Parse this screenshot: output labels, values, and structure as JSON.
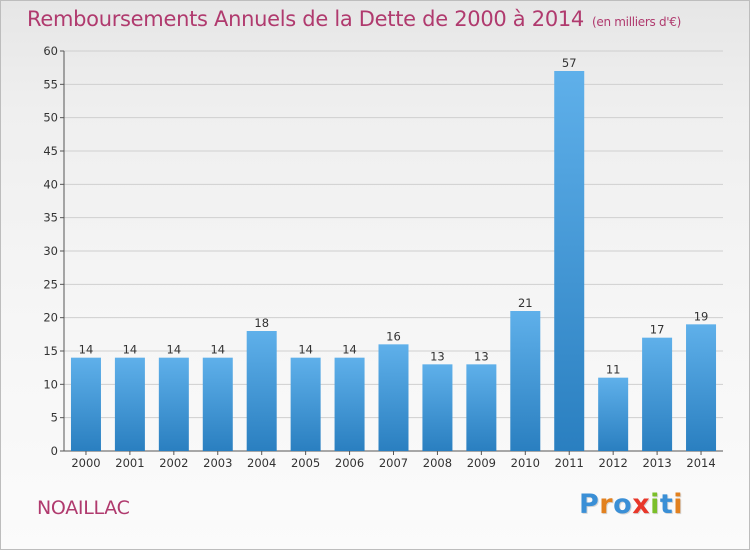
{
  "header": {
    "title": "Remboursements Annuels de la Dette de 2000 à 2014",
    "unit": "(en milliers d'€)"
  },
  "footer": {
    "commune": "NOAILLAC",
    "logo": "Proxiti"
  },
  "colors": {
    "title": "#b03a6e",
    "bar_top": "#5fb0ea",
    "bar_bottom": "#2a7fc0",
    "grid": "#cfcfcf",
    "logo": [
      "#3a8fd6",
      "#e2811f",
      "#3a8fd6",
      "#e8372a",
      "#7bbf2a",
      "#3a8fd6",
      "#e2811f"
    ]
  },
  "chart_data": {
    "type": "bar",
    "title": "Remboursements Annuels de la Dette de 2000 à 2014",
    "xlabel": "",
    "ylabel": "",
    "categories": [
      "2000",
      "2001",
      "2002",
      "2003",
      "2004",
      "2005",
      "2006",
      "2007",
      "2008",
      "2009",
      "2010",
      "2011",
      "2012",
      "2013",
      "2014"
    ],
    "values": [
      14,
      14,
      14,
      14,
      18,
      14,
      14,
      16,
      13,
      13,
      21,
      57,
      11,
      17,
      19
    ],
    "ylim": [
      0,
      60
    ],
    "yticks": [
      0,
      5,
      10,
      15,
      20,
      25,
      30,
      35,
      40,
      45,
      50,
      55,
      60
    ],
    "grid": true,
    "legend": "none"
  }
}
